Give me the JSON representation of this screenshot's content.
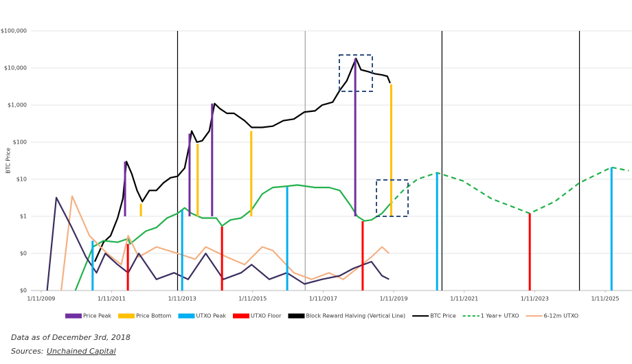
{
  "chart_data": {
    "type": "line",
    "y_label": "BTC Price",
    "yscale": "log",
    "grid": true,
    "xlim": [
      2008.74,
      2025.79
    ],
    "xticks": [
      {
        "value": 2009.03,
        "label": "1/11/2009"
      },
      {
        "value": 2011.03,
        "label": "1/11/2011"
      },
      {
        "value": 2013.03,
        "label": "1/11/2013"
      },
      {
        "value": 2015.03,
        "label": "1/11/2015"
      },
      {
        "value": 2017.03,
        "label": "1/11/2017"
      },
      {
        "value": 2019.03,
        "label": "1/11/2019"
      },
      {
        "value": 2021.03,
        "label": "1/11/2021"
      },
      {
        "value": 2023.03,
        "label": "1/11/2023"
      },
      {
        "value": 2025.03,
        "label": "1/11/2025"
      }
    ],
    "ylim": [
      0.01,
      100000
    ],
    "yticks": [
      {
        "value": 0.01,
        "label": "$0"
      },
      {
        "value": 0.1,
        "label": "$0"
      },
      {
        "value": 1,
        "label": "$1"
      },
      {
        "value": 10,
        "label": "$10"
      },
      {
        "value": 100,
        "label": "$100"
      },
      {
        "value": 1000,
        "label": "$1,000"
      },
      {
        "value": 10000,
        "label": "$10,000"
      },
      {
        "value": 100000,
        "label": "$100,000"
      }
    ],
    "series": [
      {
        "name": "Price Peak",
        "kind": "marker",
        "color": "#7030a0",
        "base": 1,
        "x": [
          2011.41,
          2013.24,
          2013.88,
          2017.94
        ],
        "values": [
          30,
          170,
          1100,
          18000
        ]
      },
      {
        "name": "Price Bottom",
        "kind": "marker",
        "color": "#ffc000",
        "base": 1,
        "x": [
          2011.86,
          2013.47,
          2014.99,
          2018.96
        ],
        "values": [
          2.2,
          90,
          200,
          3600
        ]
      },
      {
        "name": "UTXO Peak",
        "kind": "marker",
        "color": "#00b0f0",
        "x": [
          2010.49,
          2013.03,
          2016.01,
          2020.26,
          2025.21
        ],
        "values": [
          0.22,
          1.5,
          6.2,
          15,
          21
        ]
      },
      {
        "name": "UTXO Floor",
        "kind": "marker",
        "color": "#ff0000",
        "x": [
          2011.49,
          2014.16,
          2018.15,
          2022.89
        ],
        "values": [
          0.18,
          0.53,
          0.74,
          1.2
        ]
      },
      {
        "name": "Block Reward Halving (Vertical Line)",
        "kind": "vline",
        "color": "#000000",
        "x": [
          2012.9,
          2016.52,
          2020.4,
          2024.3
        ],
        "colors": [
          "#000000",
          "#a0a0a0",
          "#000000",
          "#000000"
        ]
      },
      {
        "name": "BTC Price",
        "kind": "line",
        "color": "#000000",
        "x": [
          2010.55,
          2010.8,
          2011.0,
          2011.2,
          2011.35,
          2011.45,
          2011.6,
          2011.75,
          2011.9,
          2012.1,
          2012.3,
          2012.5,
          2012.7,
          2012.9,
          2013.1,
          2013.25,
          2013.3,
          2013.45,
          2013.6,
          2013.8,
          2013.95,
          2014.1,
          2014.3,
          2014.5,
          2014.8,
          2015.0,
          2015.3,
          2015.6,
          2015.9,
          2016.2,
          2016.5,
          2016.8,
          2017.0,
          2017.3,
          2017.5,
          2017.7,
          2017.85,
          2017.96,
          2018.1,
          2018.3,
          2018.5,
          2018.7,
          2018.85,
          2018.93
        ],
        "values": [
          0.06,
          0.2,
          0.3,
          0.9,
          3,
          30,
          14,
          5,
          2.5,
          5,
          5,
          8,
          11,
          12,
          20,
          100,
          200,
          100,
          110,
          200,
          1100,
          800,
          600,
          600,
          380,
          250,
          250,
          270,
          380,
          420,
          650,
          700,
          1000,
          1200,
          2500,
          4500,
          10000,
          18000,
          9000,
          8000,
          7000,
          6500,
          6000,
          3900
        ]
      },
      {
        "name": "1 Year+ UTXO",
        "kind": "line",
        "color": "#22b14c",
        "dashed": true,
        "x": [
          2010.0,
          2010.5,
          2010.8,
          2011.2,
          2011.5,
          2011.55,
          2012.0,
          2012.3,
          2012.6,
          2012.9,
          2013.1,
          2013.3,
          2013.6,
          2014.0,
          2014.16,
          2014.4,
          2014.7,
          2015.0,
          2015.3,
          2015.6,
          2016.0,
          2016.3,
          2016.8,
          2017.2,
          2017.5,
          2017.8,
          2018.0,
          2018.2,
          2018.4,
          2018.7,
          2018.9
        ],
        "values": [
          0.01,
          0.15,
          0.22,
          0.2,
          0.25,
          0.18,
          0.4,
          0.5,
          0.9,
          1.2,
          1.7,
          1.2,
          0.9,
          0.9,
          0.55,
          0.8,
          0.9,
          1.5,
          4,
          6,
          6.5,
          7,
          6,
          6,
          5,
          2,
          1,
          0.75,
          0.8,
          1.2,
          2
        ],
        "projection_x": [
          2018.9,
          2019.3,
          2019.7,
          2020.26,
          2021.0,
          2021.8,
          2022.89,
          2023.6,
          2024.3,
          2025.21,
          2025.7
        ],
        "projection_values": [
          2,
          5,
          10,
          15,
          9,
          3,
          1.2,
          2.5,
          8,
          21,
          17
        ]
      },
      {
        "name": "6-12m UTXO",
        "kind": "line",
        "color": "#f4b183",
        "x": [
          2009.6,
          2009.91,
          2010.4,
          2010.9,
          2011.3,
          2011.5,
          2011.8,
          2012.3,
          2012.9,
          2013.4,
          2013.7,
          2014.3,
          2014.8,
          2015.3,
          2015.6,
          2016.2,
          2016.7,
          2017.2,
          2017.6,
          2018.0,
          2018.4,
          2018.7,
          2018.9
        ],
        "values": [
          0.01,
          3.5,
          0.3,
          0.1,
          0.05,
          0.3,
          0.08,
          0.15,
          0.1,
          0.07,
          0.15,
          0.08,
          0.05,
          0.15,
          0.12,
          0.03,
          0.02,
          0.03,
          0.02,
          0.04,
          0.08,
          0.15,
          0.1
        ]
      },
      {
        "kind": "line",
        "color": "#3b2d5e",
        "x": [
          2009.2,
          2009.46,
          2009.9,
          2010.3,
          2010.6,
          2010.85,
          2011.2,
          2011.5,
          2011.8,
          2012.3,
          2012.8,
          2013.2,
          2013.7,
          2014.2,
          2014.7,
          2015.0,
          2015.5,
          2016.0,
          2016.5,
          2017.0,
          2017.5,
          2017.9,
          2018.4,
          2018.7,
          2018.9
        ],
        "values": [
          0.01,
          3.2,
          0.5,
          0.08,
          0.03,
          0.1,
          0.05,
          0.03,
          0.1,
          0.02,
          0.03,
          0.02,
          0.1,
          0.02,
          0.03,
          0.05,
          0.02,
          0.03,
          0.015,
          0.02,
          0.025,
          0.04,
          0.06,
          0.025,
          0.02
        ]
      }
    ],
    "note": "Data as of December 3rd, 2018",
    "sources_label": "Sources:",
    "sources_link": "Unchained Capital"
  }
}
